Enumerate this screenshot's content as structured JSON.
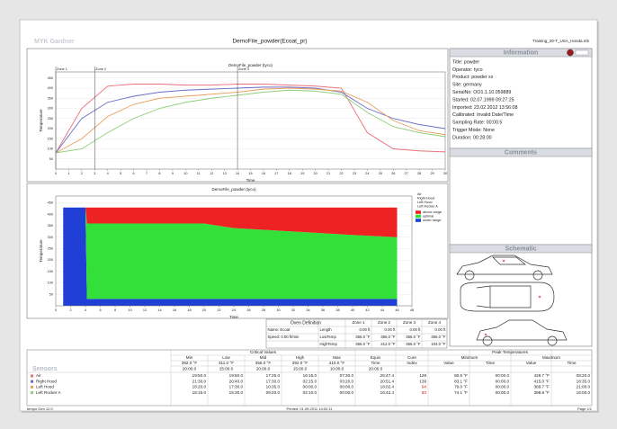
{
  "header": {
    "brand": "MYK Gardner",
    "title": "DemoFile_powder(Ecoat_pr)",
    "file": "Training_20-T_USA_Honda.mb"
  },
  "top_chart": {
    "type": "line",
    "title": "DemoFile_powder (tyco)",
    "x_label": "Time",
    "y_label": "Temperature",
    "grid": true,
    "zones": [
      {
        "label": "Zone 1",
        "x": 0
      },
      {
        "label": "Zone 2",
        "x": 3
      },
      {
        "label": "Zone 3",
        "x": 14
      }
    ],
    "x": [
      0,
      2,
      4,
      6,
      8,
      10,
      12,
      14,
      16,
      18,
      20,
      22,
      24,
      26,
      28,
      30
    ],
    "xlim": [
      0,
      30
    ],
    "xticks": [
      0,
      1,
      2,
      3,
      4,
      5,
      6,
      7,
      8,
      9,
      10,
      11,
      12,
      13,
      14,
      15,
      16,
      17,
      18,
      19,
      20,
      21,
      22,
      23,
      24,
      25,
      26,
      27,
      28,
      29,
      30
    ],
    "ylim": [
      0,
      480
    ],
    "yticks": [
      50,
      100,
      150,
      200,
      250,
      300,
      350,
      400,
      450
    ],
    "series": [
      {
        "name": "Air",
        "color": "#e8707a",
        "values": [
          80,
          300,
          410,
          420,
          420,
          415,
          415,
          420,
          420,
          415,
          410,
          400,
          180,
          100,
          90,
          85
        ]
      },
      {
        "name": "Right Hood",
        "color": "#6a70c8",
        "values": [
          80,
          250,
          330,
          360,
          380,
          390,
          395,
          400,
          405,
          405,
          400,
          380,
          300,
          250,
          220,
          200
        ]
      },
      {
        "name": "Left Hood",
        "color": "#e9a060",
        "values": [
          80,
          150,
          260,
          320,
          350,
          360,
          370,
          380,
          395,
          400,
          395,
          385,
          330,
          240,
          190,
          170
        ]
      },
      {
        "name": "Left Rocker A",
        "color": "#8fcf7a",
        "values": [
          80,
          100,
          180,
          250,
          300,
          330,
          350,
          365,
          380,
          390,
          385,
          370,
          280,
          210,
          180,
          160
        ]
      }
    ]
  },
  "bottom_chart": {
    "type": "area",
    "title": "DemoFile_powder (tyco)",
    "x_label": "Time",
    "y_label": "Temperature",
    "grid": true,
    "x": [
      1,
      4,
      4.2,
      20,
      24,
      40,
      46
    ],
    "xlim": [
      0,
      48
    ],
    "xticks": [
      0,
      2,
      4,
      6,
      8,
      10,
      12,
      14,
      16,
      18,
      20,
      22,
      24,
      26,
      28,
      30,
      32,
      34,
      36,
      38,
      40,
      42,
      44,
      46,
      48
    ],
    "ylim": [
      0,
      480
    ],
    "yticks": [
      50,
      100,
      150,
      200,
      250,
      300,
      350,
      400,
      450
    ],
    "series": [
      {
        "name": "under range",
        "color": "#1f3fd6",
        "values": [
          430,
          430,
          30,
          30,
          30,
          30,
          30
        ]
      },
      {
        "name": "optimal",
        "color": "#33e03a",
        "values": [
          0,
          0,
          330,
          330,
          310,
          280,
          270
        ]
      },
      {
        "name": "above range",
        "color": "#ee2222",
        "values": [
          0,
          0,
          70,
          70,
          90,
          120,
          130
        ]
      }
    ]
  },
  "information": {
    "heading": "Information",
    "lines": [
      "Title: powder",
      "Operator: tyco",
      "Product: powder xx",
      "Site: germany",
      "SerialNo: OO1.1.10.059889",
      "Started: 02.07.1999 09:27:25",
      "Imported: 23.02.2012 13:56:08",
      "Calibrated: Invalid Date/Time",
      "Sampling Rate: 00:00.5",
      "Trigger Mode: None",
      "Duration: 00:28:00"
    ]
  },
  "comments": {
    "heading": "Comments"
  },
  "schematic": {
    "heading": "Schematic"
  },
  "oven_table": {
    "title": "Oven Definition",
    "zones": [
      "Zone 1",
      "Zone 2",
      "Zone 3",
      "Zone 4"
    ],
    "rows": [
      {
        "info": "Name: Ecoat",
        "param": "Length",
        "values": [
          "0.00 ft",
          "0.00 ft",
          "0.00 ft",
          "0.00 ft"
        ]
      },
      {
        "info": "Speed: 0.00 ft/min",
        "param": "LowTemp",
        "values": [
          "356.0 °F",
          "356.0 °F",
          "356.0 °F",
          "356.0 °F"
        ]
      },
      {
        "param": "HighTemp",
        "values": [
          "356.0 °F",
          "212.0 °F",
          "356.0 °F",
          "104.0 °F"
        ]
      }
    ]
  },
  "results_table": {
    "sensors_label": "Sensors",
    "critical_label": "Critical Values",
    "limits": [
      {
        "name": "Min",
        "temp": "392.0 °F",
        "time": "20:00.0"
      },
      {
        "name": "Low",
        "temp": "311.0 °F",
        "time": "25:00.0"
      },
      {
        "name": "Mid",
        "temp": "356.0 °F",
        "time": "20:00.0"
      },
      {
        "name": "High",
        "temp": "392.0 °F",
        "time": "15:00.0"
      },
      {
        "name": "Max",
        "temp": "410.0 °F",
        "time": "10:00.0"
      }
    ],
    "equiv_label": [
      "Equiv",
      "Time"
    ],
    "equiv_time": "20:00.0",
    "cure_label": [
      "Cure",
      "Index"
    ],
    "peak_label": "Peak Temperatures",
    "peak_groups": [
      "Minimum",
      "Maximum"
    ],
    "peak_cols": [
      "Value",
      "Time",
      "Value",
      "Time"
    ],
    "rows": [
      {
        "sensor": "Air",
        "color": "#e8707a",
        "times": [
          "19:50.0",
          "19:50.0",
          "17:25.0",
          "16:15.0",
          "07:30.0"
        ],
        "equiv": "25:47.4",
        "cure": "128",
        "cure_alert": false,
        "peaks": [
          "80.6 °F",
          "00:00.0",
          "426.7 °F",
          "08:20.0"
        ]
      },
      {
        "sensor": "Right Hood",
        "color": "#6a70c8",
        "times": [
          "21:30.0",
          "20:40.0",
          "17:30.0",
          "02:15.0",
          "03:20.0"
        ],
        "equiv": "20:51.4",
        "cure": "139",
        "cure_alert": false,
        "peaks": [
          "83.1 °F",
          "00:00.0",
          "415.0 °F",
          "18:35.0"
        ]
      },
      {
        "sensor": "Left Hood",
        "color": "#e9a060",
        "times": [
          "18:20.0",
          "17:30.0",
          "10:35.0",
          "00:00.0",
          "00:00.0"
        ],
        "equiv": "18:02.4",
        "cure": "94",
        "cure_alert": true,
        "peaks": [
          "79.0 °F",
          "00:00.0",
          "389.7 °F",
          "21:00.0"
        ]
      },
      {
        "sensor": "Left Rocker A",
        "color": "#8fcf7a",
        "times": [
          "18:15.0",
          "15:30.0",
          "09:20.0",
          "02:10.0",
          "00:00.0"
        ],
        "equiv": "16:42.4",
        "cure": "83",
        "cure_alert": true,
        "peaks": [
          "74.1 °F",
          "00:00.0",
          "398.8 °F",
          "16:00.0"
        ]
      }
    ]
  },
  "footer": {
    "left": "tempo Gen 12.0",
    "center": "Printed: 01.09.2011 14:02:11",
    "right": "Page 1/1"
  }
}
